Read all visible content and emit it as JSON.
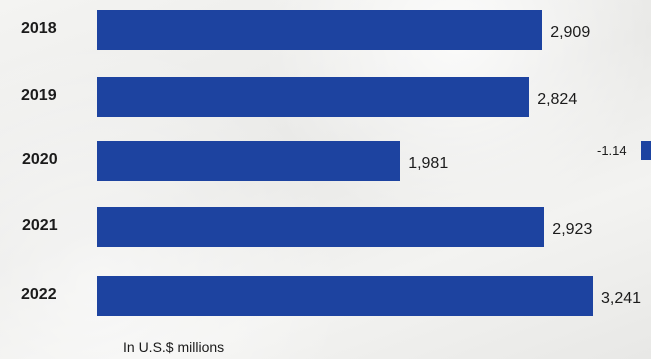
{
  "chart_data": {
    "type": "bar",
    "orientation": "horizontal",
    "categories": [
      "2018",
      "2019",
      "2020",
      "2021",
      "2022"
    ],
    "values": [
      2909,
      2824,
      1981,
      2923,
      3241
    ],
    "value_labels": [
      "2,909",
      "2,824",
      "1,981",
      "2,923",
      "3,241"
    ],
    "bar_color": "#1d43a0",
    "grid": false,
    "legend": "none"
  },
  "note": "In U.S.$ millions",
  "side_label": "-1.14"
}
